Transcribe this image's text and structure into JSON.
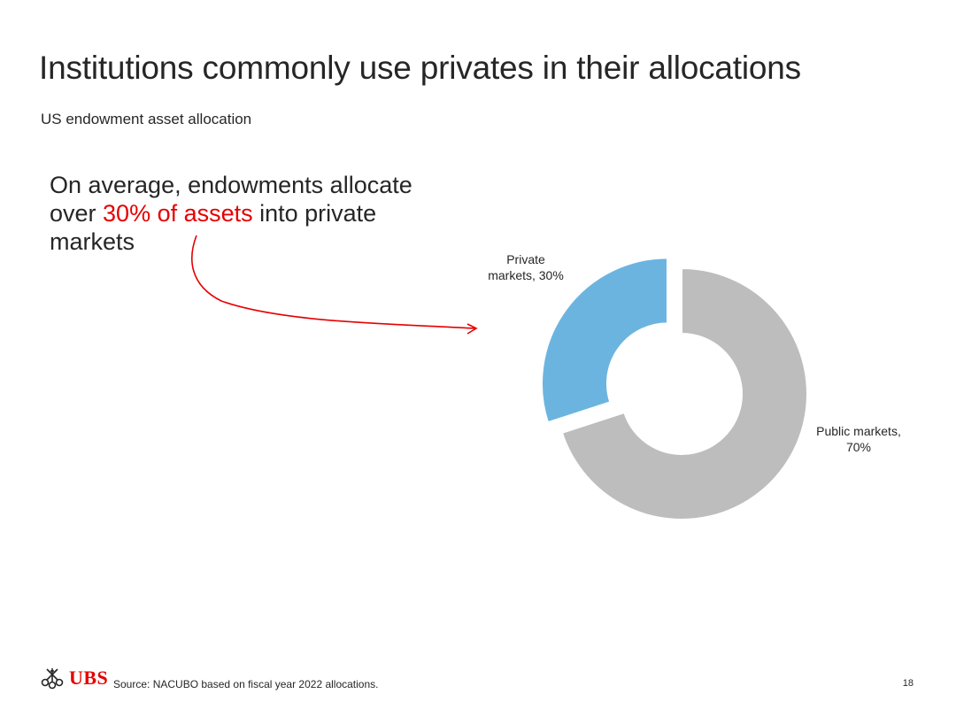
{
  "slide": {
    "title": "Institutions commonly use privates in their allocations",
    "subtitle": "US endowment asset allocation",
    "callout": {
      "before": "On average, endowments allocate over ",
      "highlight": "30% of assets",
      "after": " into private markets"
    },
    "source": "Source: NACUBO based on fiscal year 2022 allocations.",
    "page_number": "18",
    "logo_text": "UBS"
  },
  "colors": {
    "accent": "#e60000",
    "private": "#6cb4e0",
    "public": "#bdbdbd"
  },
  "chart_data": {
    "type": "pie",
    "style": "donut",
    "title": "US endowment asset allocation",
    "slices": [
      {
        "label_lines": [
          "Private",
          "markets, 30%"
        ],
        "category": "Private markets",
        "value": 30,
        "color": "#6cb4e0",
        "exploded": true
      },
      {
        "label_lines": [
          "Public markets,",
          "70%"
        ],
        "category": "Public markets",
        "value": 70,
        "color": "#bdbdbd",
        "exploded": false
      }
    ]
  }
}
